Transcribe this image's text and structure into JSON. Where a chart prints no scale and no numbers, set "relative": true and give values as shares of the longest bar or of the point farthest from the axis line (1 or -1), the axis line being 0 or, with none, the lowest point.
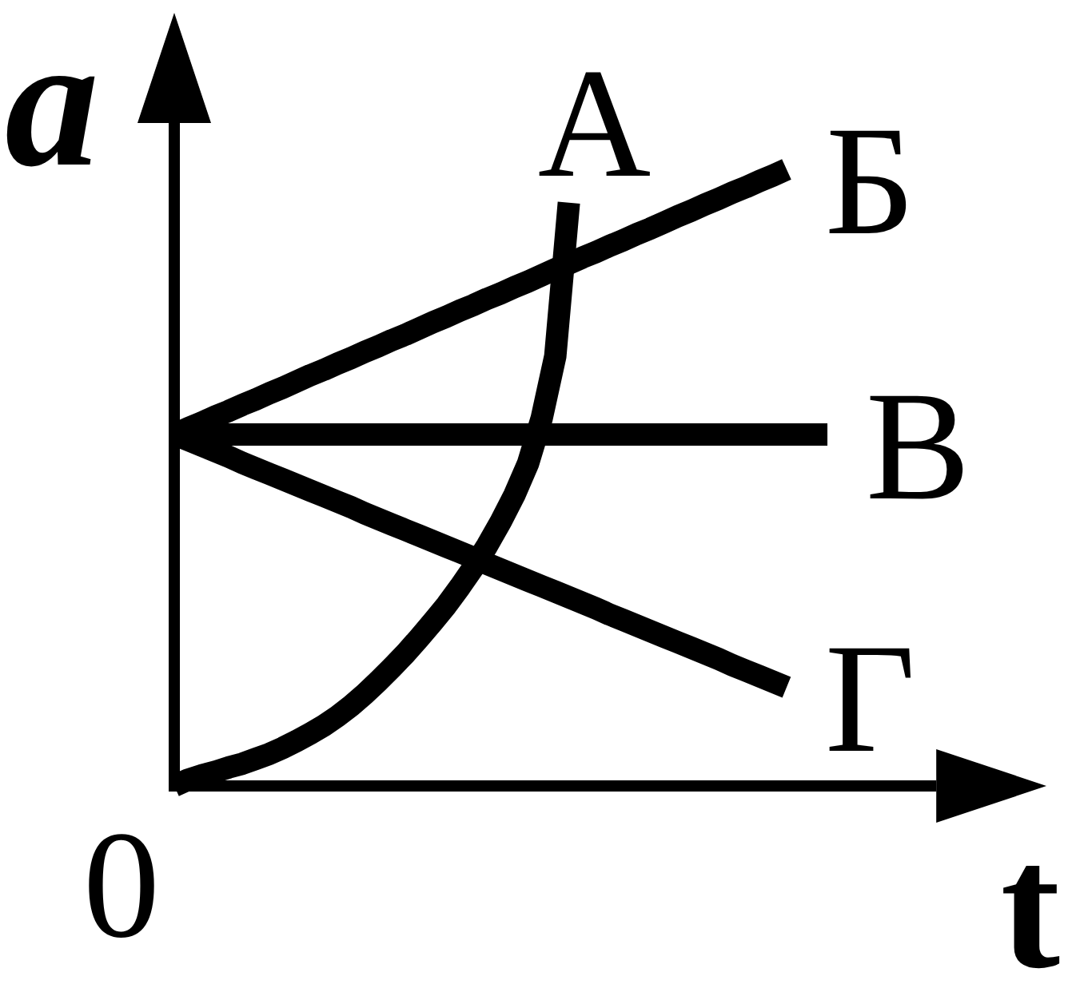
{
  "chart_data": {
    "type": "line",
    "relative": true,
    "xlabel": "t",
    "ylabel": "a",
    "annotations": [
      "0"
    ],
    "legend": false,
    "grid": false,
    "categories": [
      null,
      null,
      null,
      null,
      null,
      null,
      null,
      null,
      null,
      null,
      null,
      null,
      null,
      null,
      null,
      null,
      null,
      null,
      null,
      null,
      null,
      null,
      null,
      null,
      null,
      null,
      null,
      null,
      null,
      null,
      null,
      null,
      null,
      null,
      null,
      null,
      null,
      null,
      null,
      null,
      null,
      null,
      null,
      null,
      null,
      null,
      null,
      null,
      null,
      null,
      null,
      null,
      null,
      null,
      null,
      null,
      null
    ],
    "series": [
      {
        "name": "А",
        "color": "#000000",
        "values": [
          0,
          0.01,
          0.017,
          0.023,
          0.03,
          0.036,
          0.044,
          0.052,
          0.062,
          0.073,
          0.085,
          0.098,
          0.113,
          0.13,
          0.149,
          0.17,
          0.192,
          0.215,
          0.24,
          0.266,
          0.293,
          0.323,
          0.355,
          0.39,
          0.429,
          0.472,
          0.523,
          0.596,
          0.697,
          0.946,
          null,
          null,
          null,
          null,
          null,
          null,
          null,
          null,
          null,
          null,
          null,
          null,
          null,
          null,
          null,
          null,
          null,
          null,
          null,
          null,
          null,
          null,
          null,
          null,
          null,
          null,
          null
        ]
      },
      {
        "name": "Б",
        "color": "#000000",
        "values": [
          0.57,
          0.58,
          0.589,
          0.599,
          0.608,
          0.618,
          0.627,
          0.637,
          0.646,
          0.656,
          0.666,
          0.675,
          0.685,
          0.694,
          0.704,
          0.713,
          0.723,
          0.732,
          0.742,
          0.752,
          0.761,
          0.771,
          0.78,
          0.79,
          0.799,
          0.809,
          0.818,
          0.828,
          0.838,
          0.847,
          0.857,
          0.866,
          0.876,
          0.885,
          0.895,
          0.904,
          0.914,
          0.924,
          0.933,
          0.943,
          0.952,
          0.962,
          0.971,
          0.981,
          0.99,
          1.0,
          null,
          null,
          null,
          null,
          null,
          null,
          null,
          null,
          null,
          null,
          null
        ]
      },
      {
        "name": "В",
        "color": "#000000",
        "values": [
          0.57,
          0.57,
          0.57,
          0.57,
          0.57,
          0.57,
          0.57,
          0.57,
          0.57,
          0.57,
          0.57,
          0.57,
          0.57,
          0.57,
          0.57,
          0.57,
          0.57,
          0.57,
          0.57,
          0.57,
          0.57,
          0.57,
          0.57,
          0.57,
          0.57,
          0.57,
          0.57,
          0.57,
          0.57,
          0.57,
          0.57,
          0.57,
          0.57,
          0.57,
          0.57,
          0.57,
          0.57,
          0.57,
          0.57,
          0.57,
          0.57,
          0.57,
          0.57,
          0.57,
          0.57,
          0.57,
          0.57,
          0.57,
          0.57,
          null,
          null,
          null,
          null,
          null,
          null,
          null,
          null
        ]
      },
      {
        "name": "Г",
        "color": "#000000",
        "values": [
          0.57,
          0.561,
          0.552,
          0.543,
          0.534,
          0.524,
          0.515,
          0.506,
          0.497,
          0.488,
          0.479,
          0.47,
          0.461,
          0.452,
          0.442,
          0.433,
          0.424,
          0.415,
          0.406,
          0.397,
          0.388,
          0.379,
          0.37,
          0.36,
          0.351,
          0.342,
          0.333,
          0.324,
          0.315,
          0.306,
          0.297,
          0.288,
          0.278,
          0.269,
          0.26,
          0.251,
          0.242,
          0.233,
          0.224,
          0.215,
          0.206,
          0.196,
          0.187,
          0.178,
          0.169,
          0.16,
          null,
          null,
          null,
          null,
          null,
          null,
          null,
          null,
          null,
          null,
          null
        ]
      }
    ]
  }
}
